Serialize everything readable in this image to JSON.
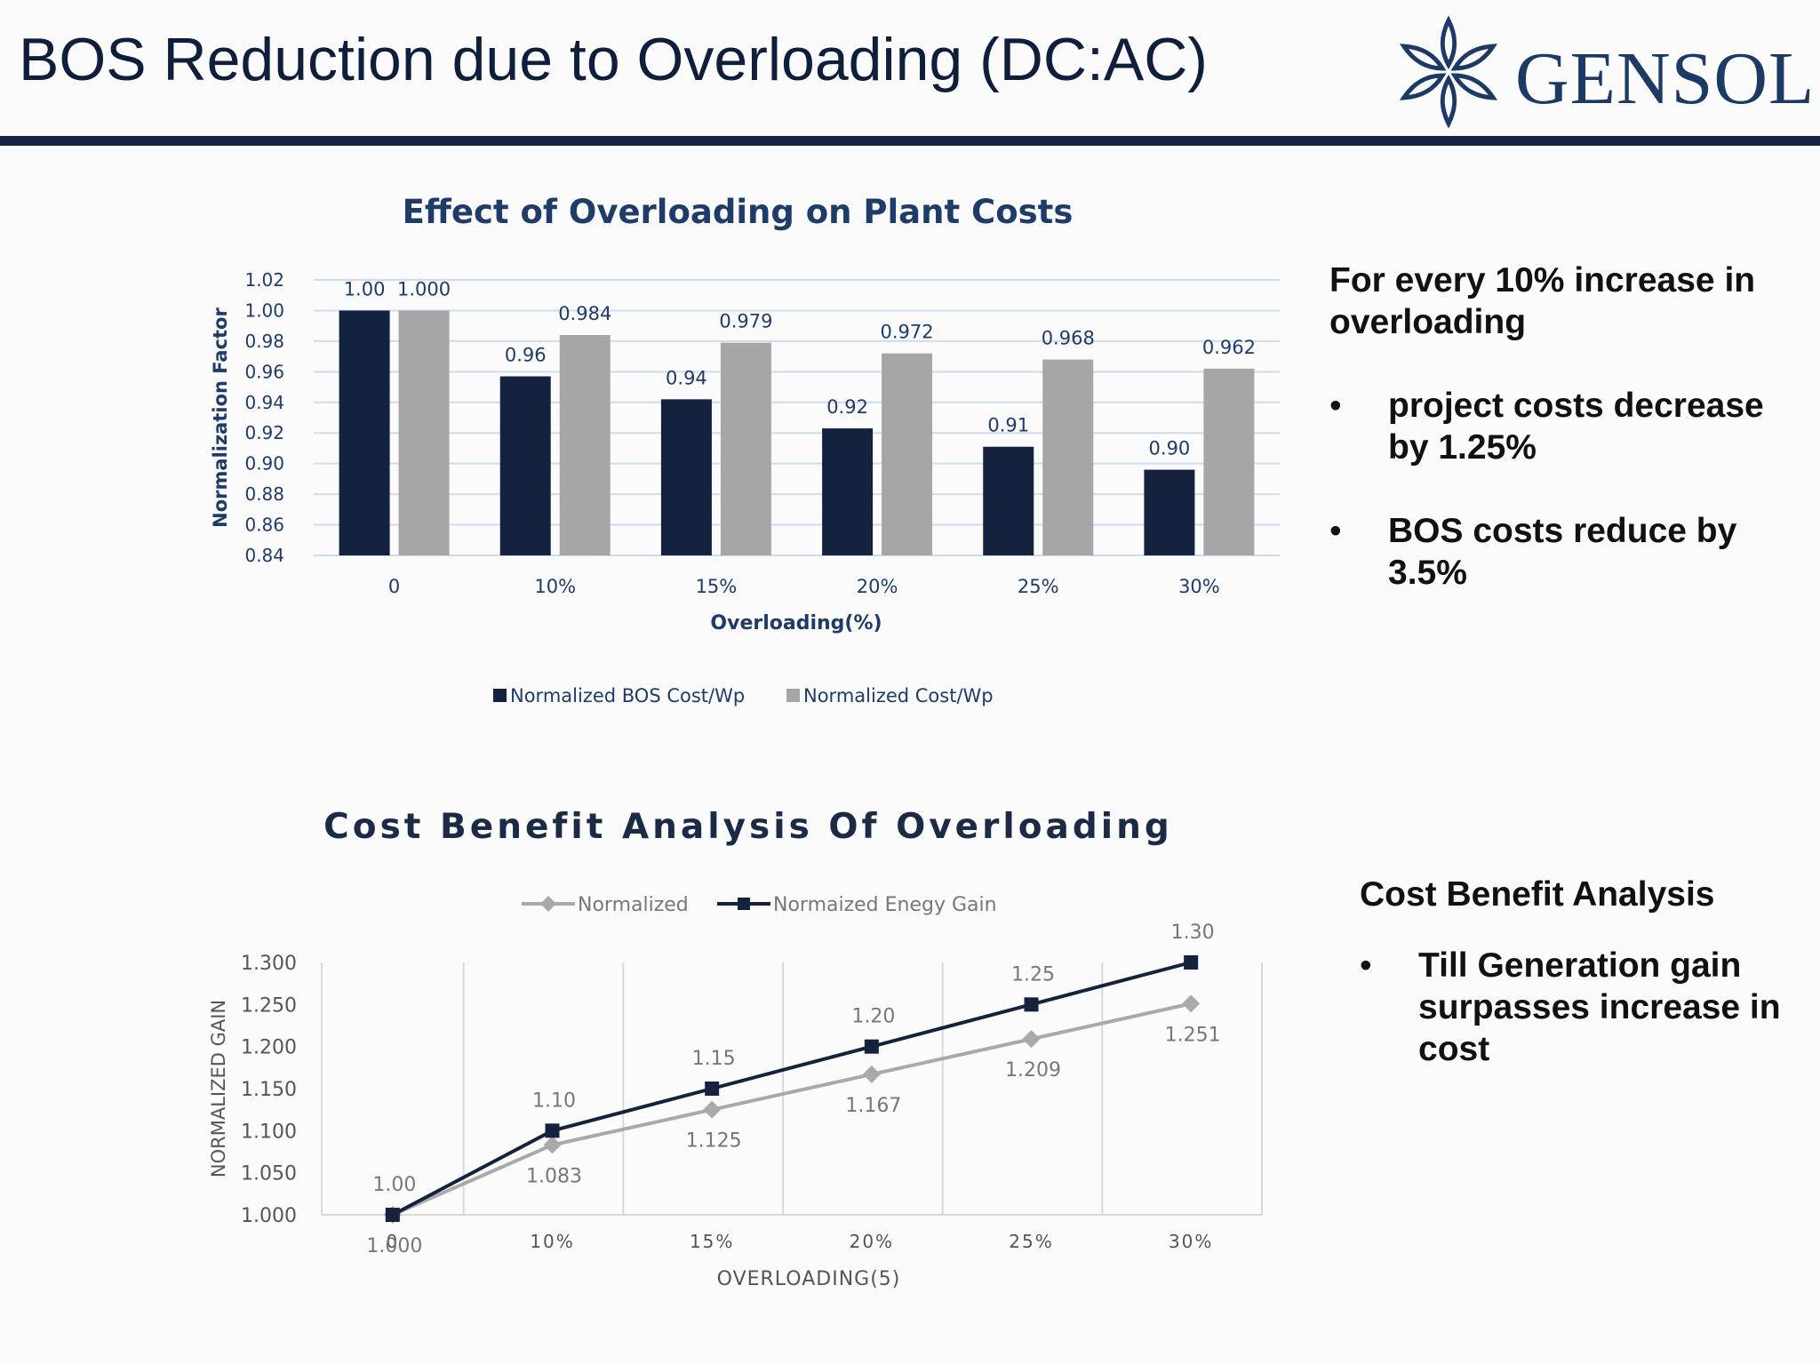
{
  "slide": {
    "title": "BOS Reduction due to Overloading (DC:AC)",
    "logo_text": "GENSOL",
    "rule_color": "#142440"
  },
  "notes1": {
    "heading": "For every 10% increase in overloading",
    "bullets": [
      "project costs decrease by 1.25%",
      "BOS costs reduce by 3.5%"
    ]
  },
  "notes2": {
    "heading": "Cost Benefit Analysis",
    "bullets": [
      "Till Generation gain surpasses increase in cost"
    ]
  },
  "chart_data": [
    {
      "type": "bar",
      "title": "Effect of Overloading on Plant Costs",
      "xlabel": "Overloading(%)",
      "ylabel": "Normalization Factor",
      "categories": [
        "0",
        "10%",
        "15%",
        "20%",
        "25%",
        "30%"
      ],
      "ylim": [
        0.84,
        1.02
      ],
      "yticks": [
        "1.02",
        "1.00",
        "0.98",
        "0.96",
        "0.94",
        "0.92",
        "0.90",
        "0.88",
        "0.86",
        "0.84"
      ],
      "grid": true,
      "legend_position": "bottom",
      "series": [
        {
          "name": "Normalized BOS Cost/Wp",
          "color": "#14223d",
          "values": [
            1.0,
            0.957,
            0.942,
            0.923,
            0.911,
            0.896
          ],
          "labels": [
            "1.00",
            "0.96",
            "0.94",
            "0.92",
            "0.91",
            "0.90"
          ]
        },
        {
          "name": "Normalized Cost/Wp",
          "color": "#a6a6a8",
          "values": [
            1.0,
            0.984,
            0.979,
            0.972,
            0.968,
            0.962
          ],
          "labels": [
            "1.000",
            "0.984",
            "0.979",
            "0.972",
            "0.968",
            "0.962"
          ]
        }
      ]
    },
    {
      "type": "line",
      "title": "Cost Benefit Analysis Of Overloading",
      "xlabel": "OVERLOADING(5)",
      "ylabel": "NORMALIZED GAIN",
      "categories": [
        "0",
        "10%",
        "15%",
        "20%",
        "25%",
        "30%"
      ],
      "ylim": [
        1.0,
        1.3
      ],
      "yticks": [
        "1.300",
        "1.250",
        "1.200",
        "1.150",
        "1.100",
        "1.050",
        "1.000"
      ],
      "grid": true,
      "legend_position": "top",
      "series": [
        {
          "name": "Normalized",
          "color": "#a9a9ab",
          "marker": "diamond",
          "values": [
            1.0,
            1.083,
            1.125,
            1.167,
            1.209,
            1.251
          ],
          "labels": [
            "1.000",
            "1.083",
            "1.125",
            "1.167",
            "1.209",
            "1.251"
          ]
        },
        {
          "name": "Normaized Enegy Gain",
          "color": "#14223d",
          "marker": "square",
          "values": [
            1.0,
            1.1,
            1.15,
            1.2,
            1.25,
            1.3
          ],
          "labels": [
            "1.00",
            "1.10",
            "1.15",
            "1.20",
            "1.25",
            "1.30"
          ]
        }
      ]
    }
  ]
}
